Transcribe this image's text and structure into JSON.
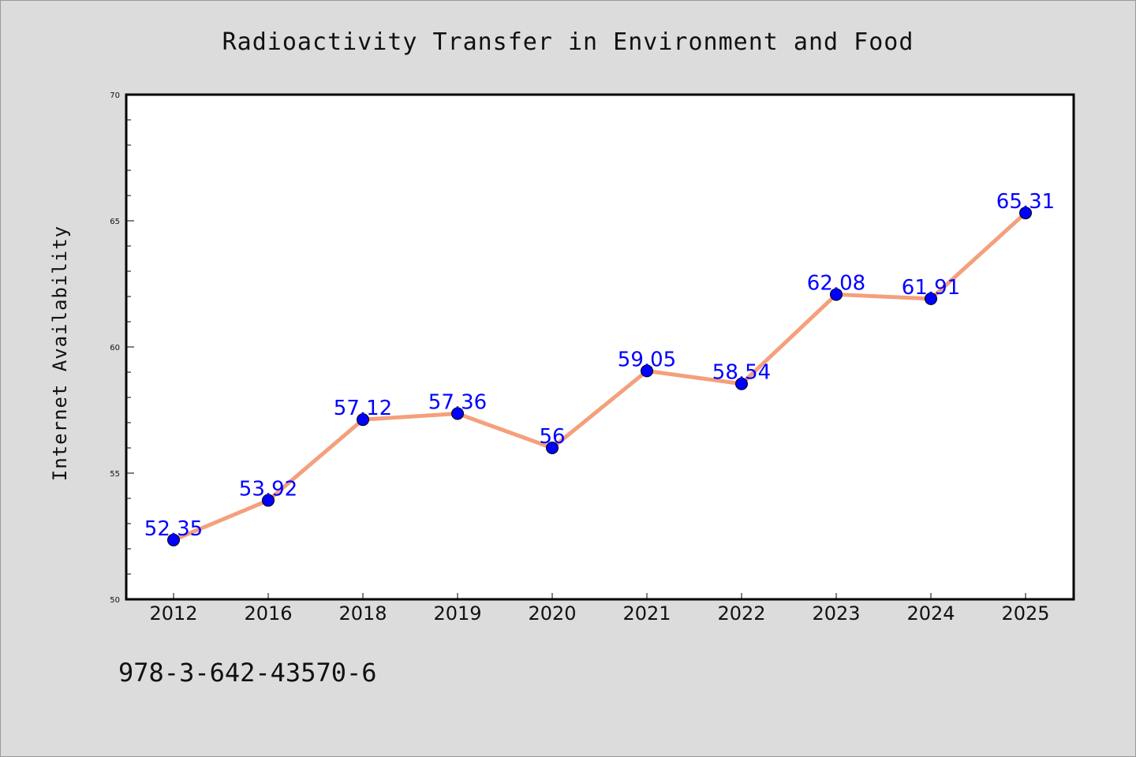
{
  "chart_data": {
    "type": "line",
    "title": "Radioactivity Transfer in Environment and Food",
    "xlabel": "",
    "ylabel": "Internet Availability",
    "categories": [
      "2012",
      "2016",
      "2018",
      "2019",
      "2020",
      "2021",
      "2022",
      "2023",
      "2024",
      "2025"
    ],
    "values": [
      52.35,
      53.92,
      57.12,
      57.36,
      56,
      59.05,
      58.54,
      62.08,
      61.91,
      65.31
    ],
    "value_labels": [
      "52.35",
      "53.92",
      "57.12",
      "57.36",
      "56",
      "59.05",
      "58.54",
      "62.08",
      "61.91",
      "65.31"
    ],
    "ylim": [
      50,
      70
    ],
    "yticks": [
      "50",
      "55",
      "60",
      "65",
      "70"
    ],
    "grid": false,
    "legend": "none",
    "colors": {
      "line": "#f4a07c",
      "marker": "#0000ff",
      "label": "#0000ff",
      "plot_background": "#ffffff",
      "page_background": "#dcdcdc"
    }
  },
  "footnote": "978-3-642-43570-6"
}
